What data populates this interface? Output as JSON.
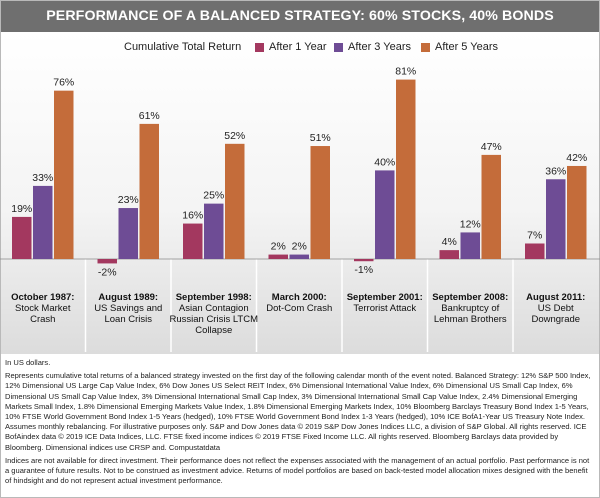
{
  "title": "PERFORMANCE OF A BALANCED STRATEGY: 60% STOCKS, 40% BONDS",
  "colors": {
    "after_1_year": "#a3385f",
    "after_3_years": "#6e4c95",
    "after_5_years": "#c46c3a"
  },
  "chart_data": {
    "type": "bar",
    "legend_title": "Cumulative Total Return",
    "legend_placement": "top",
    "ylim": [
      -5,
      90
    ],
    "grid": false,
    "value_suffix": "%",
    "categories": [
      {
        "bold": "October 1987:",
        "lines": [
          "Stock Market",
          "Crash"
        ]
      },
      {
        "bold": "August 1989:",
        "lines": [
          "US Savings and",
          "Loan Crisis"
        ]
      },
      {
        "bold": "September 1998:",
        "lines": [
          "Asian Contagion",
          "Russian Crisis LTCM",
          "Collapse"
        ]
      },
      {
        "bold": "March 2000:",
        "lines": [
          "Dot-Com Crash"
        ]
      },
      {
        "bold": "September 2001:",
        "lines": [
          "Terrorist Attack"
        ]
      },
      {
        "bold": "September 2008:",
        "lines": [
          "Bankruptcy of",
          "Lehman Brothers"
        ]
      },
      {
        "bold": "August 2011:",
        "lines": [
          "US Debt",
          "Downgrade"
        ]
      }
    ],
    "series": [
      {
        "name": "After 1 Year",
        "values": [
          19,
          -2,
          16,
          2,
          -1,
          4,
          7
        ]
      },
      {
        "name": "After 3 Years",
        "values": [
          33,
          23,
          25,
          2,
          40,
          12,
          36
        ]
      },
      {
        "name": "After 5 Years",
        "values": [
          76,
          61,
          52,
          51,
          81,
          47,
          42
        ]
      }
    ]
  },
  "notes": {
    "p1": "In US dollars.",
    "p2": "Represents cumulative total returns of a balanced strategy invested on the first day of the following calendar month of the event noted. Balanced Strategy: 12% S&P 500 Index, 12% Dimensional US Large Cap Value Index, 6% Dow Jones US Select REIT Index, 6% Dimensional International Value Index, 6% Dimensional US Small Cap Index, 6% Dimensional US Small Cap Value Index, 3% Dimensional International Small Cap Index, 3% Dimensional International Small Cap Value Index, 2.4% Dimensional Emerging Markets Small Index, 1.8% Dimensional Emerging Markets Value Index, 1.8% Dimensional Emerging Markets Index, 10% Bloomberg Barclays Treasury Bond Index 1-5 Years, 10% FTSE World Government Bond Index 1-5 Years (hedged), 10% FTSE World Government Bond Index 1-3 Years (hedged), 10% ICE BofA1-Year US Treasury Note Index. Assumes monthly rebalancing. For illustrative purposes only. S&P and Dow Jones data © 2019 S&P Dow Jones Indices LLC, a division of S&P Global. All rights reserved. ICE BofAindex data © 2019 ICE Data Indices, LLC. FTSE fixed income indices © 2019 FTSE Fixed Income LLC. All rights reserved. Bloomberg Barclays data provided by Bloomberg. Dimensional indices use CRSP and. Compustatdata",
    "p3": "Indices are not available for direct investment. Their performance does not reflect the expenses associated with the management of an actual portfolio. Past performance is not a guarantee of future results. Not to be construed as investment advice. Returns of model portfolios are based on back-tested model allocation mixes designed with the benefit of hindsight and do not represent actual investment performance."
  }
}
